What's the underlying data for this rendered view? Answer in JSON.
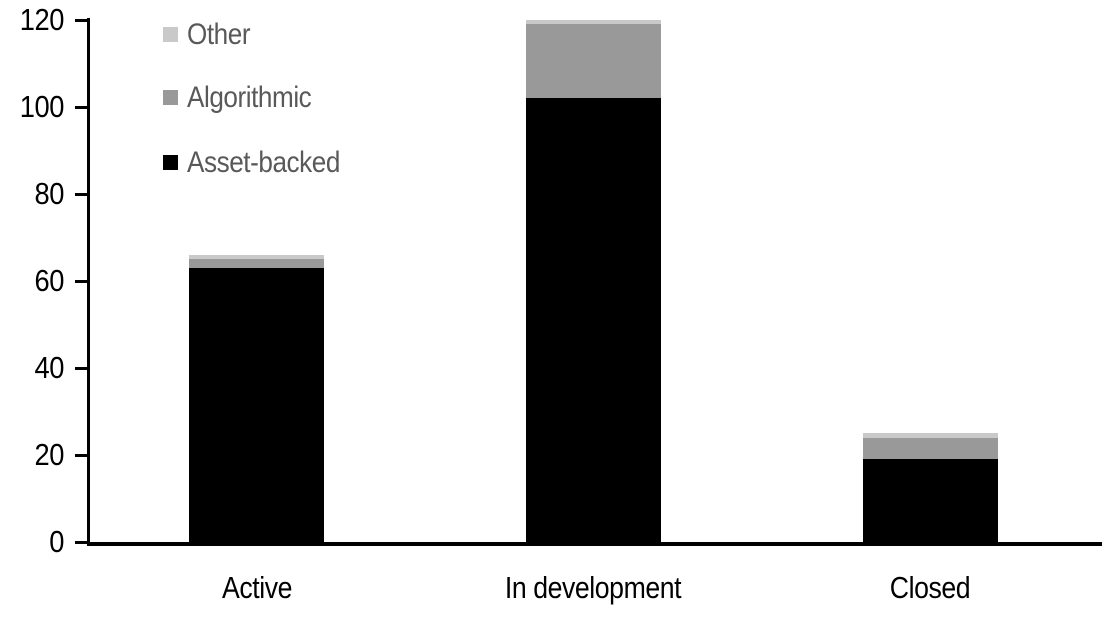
{
  "chart_data": {
    "type": "bar",
    "stacked": true,
    "title": "",
    "xlabel": "",
    "ylabel": "",
    "categories": [
      "Active",
      "In development",
      "Closed"
    ],
    "series": [
      {
        "name": "Asset-backed",
        "color": "#000000",
        "values": [
          63,
          102,
          19
        ]
      },
      {
        "name": "Algorithmic",
        "color": "#999999",
        "values": [
          2,
          17,
          5
        ]
      },
      {
        "name": "Other",
        "color": "#c9c9c9",
        "values": [
          1,
          1,
          1
        ]
      }
    ],
    "totals": [
      66,
      120,
      25
    ],
    "ylim": [
      0,
      120
    ],
    "yticks": [
      0,
      20,
      40,
      60,
      80,
      100,
      120
    ],
    "grid": false,
    "legend_position": "top-left",
    "legend_order_top_to_bottom": [
      "Other",
      "Algorithmic",
      "Asset-backed"
    ]
  },
  "legend": {
    "items": [
      {
        "label": "Other",
        "color": "#c9c9c9"
      },
      {
        "label": "Algorithmic",
        "color": "#999999"
      },
      {
        "label": "Asset-backed",
        "color": "#000000"
      }
    ]
  },
  "colors": {
    "background": "#ffffff",
    "axis": "#000000",
    "tick_label_text": "#000000",
    "category_label_text": "#000000",
    "legend_text": "#595959"
  }
}
